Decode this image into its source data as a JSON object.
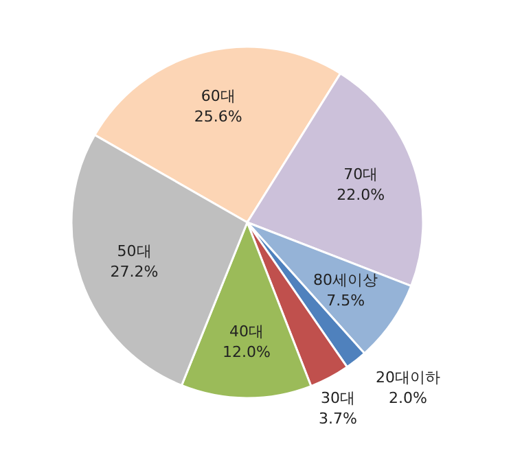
{
  "chart_data": {
    "type": "pie",
    "categories": [
      "60대",
      "70대",
      "80세이상",
      "20대이하",
      "30대",
      "40대",
      "50대"
    ],
    "values": [
      25.6,
      22.0,
      7.5,
      2.0,
      3.7,
      12.0,
      27.2
    ],
    "colors": [
      "#fcd5b5",
      "#ccc1da",
      "#95b3d7",
      "#4f81bd",
      "#c0504d",
      "#9bbb59",
      "#bfbfbf"
    ],
    "value_labels": [
      "25.6%",
      "22.0%",
      "7.5%",
      "2.0%",
      "3.7%",
      "12.0%",
      "27.2%"
    ],
    "legend": false
  }
}
